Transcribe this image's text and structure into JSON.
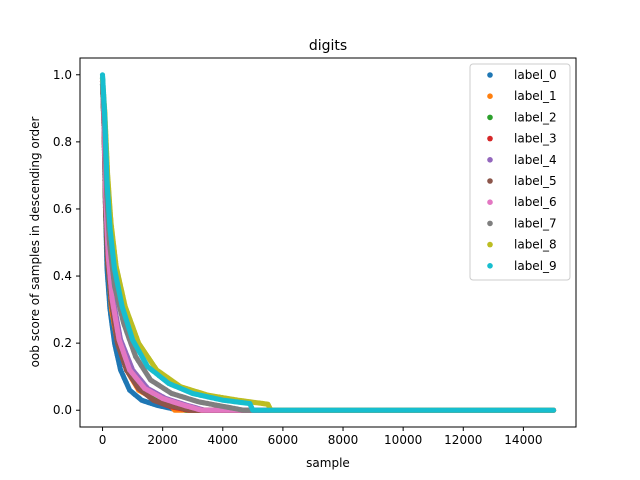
{
  "chart_data": {
    "type": "scatter",
    "title": "digits",
    "xlabel": "sample",
    "ylabel": "oob score of samples in descending order",
    "xlim": [
      -750,
      15750
    ],
    "ylim": [
      -0.05,
      1.05
    ],
    "xticks": [
      0,
      2000,
      4000,
      6000,
      8000,
      10000,
      12000,
      14000
    ],
    "xtick_labels": [
      "0",
      "2000",
      "4000",
      "6000",
      "8000",
      "10000",
      "12000",
      "14000"
    ],
    "yticks": [
      0.0,
      0.2,
      0.4,
      0.6,
      0.8,
      1.0
    ],
    "ytick_labels": [
      "0.0",
      "0.2",
      "0.4",
      "0.6",
      "0.8",
      "1.0"
    ],
    "grid": false,
    "legend_position": "top-right",
    "series": [
      {
        "name": "label_0",
        "color": "#1f77b4",
        "points": [
          [
            0,
            0.99
          ],
          [
            50,
            0.85
          ],
          [
            100,
            0.6
          ],
          [
            150,
            0.42
          ],
          [
            250,
            0.3
          ],
          [
            400,
            0.2
          ],
          [
            600,
            0.12
          ],
          [
            900,
            0.06
          ],
          [
            1300,
            0.03
          ],
          [
            1800,
            0.015
          ],
          [
            2300,
            0.005
          ],
          [
            2800,
            0.0
          ],
          [
            15000,
            0.0
          ]
        ]
      },
      {
        "name": "label_1",
        "color": "#ff7f0e",
        "points": [
          [
            0,
            0.98
          ],
          [
            60,
            0.86
          ],
          [
            120,
            0.6
          ],
          [
            200,
            0.42
          ],
          [
            300,
            0.3
          ],
          [
            500,
            0.2
          ],
          [
            800,
            0.12
          ],
          [
            1200,
            0.06
          ],
          [
            1700,
            0.035
          ],
          [
            2200,
            0.02
          ],
          [
            2400,
            0.0
          ],
          [
            15000,
            0.0
          ]
        ]
      },
      {
        "name": "label_2",
        "color": "#2ca02c",
        "points": [
          [
            0,
            0.97
          ],
          [
            50,
            0.84
          ],
          [
            100,
            0.6
          ],
          [
            170,
            0.44
          ],
          [
            300,
            0.32
          ],
          [
            500,
            0.21
          ],
          [
            800,
            0.12
          ],
          [
            1200,
            0.07
          ],
          [
            1700,
            0.035
          ],
          [
            2300,
            0.015
          ],
          [
            2800,
            0.0
          ],
          [
            15000,
            0.0
          ]
        ]
      },
      {
        "name": "label_3",
        "color": "#d62728",
        "points": [
          [
            0,
            0.98
          ],
          [
            50,
            0.85
          ],
          [
            110,
            0.6
          ],
          [
            180,
            0.45
          ],
          [
            300,
            0.32
          ],
          [
            500,
            0.2
          ],
          [
            800,
            0.12
          ],
          [
            1200,
            0.065
          ],
          [
            1700,
            0.03
          ],
          [
            2300,
            0.01
          ],
          [
            2900,
            0.0
          ],
          [
            15000,
            0.0
          ]
        ]
      },
      {
        "name": "label_4",
        "color": "#9467bd",
        "points": [
          [
            0,
            0.97
          ],
          [
            60,
            0.85
          ],
          [
            120,
            0.62
          ],
          [
            200,
            0.46
          ],
          [
            350,
            0.33
          ],
          [
            600,
            0.21
          ],
          [
            1000,
            0.12
          ],
          [
            1500,
            0.065
          ],
          [
            2100,
            0.035
          ],
          [
            2800,
            0.015
          ],
          [
            3400,
            0.0
          ],
          [
            15000,
            0.0
          ]
        ]
      },
      {
        "name": "label_5",
        "color": "#8c564b",
        "points": [
          [
            0,
            0.98
          ],
          [
            50,
            0.85
          ],
          [
            100,
            0.6
          ],
          [
            170,
            0.44
          ],
          [
            300,
            0.32
          ],
          [
            500,
            0.2
          ],
          [
            800,
            0.12
          ],
          [
            1200,
            0.065
          ],
          [
            1700,
            0.03
          ],
          [
            2300,
            0.012
          ],
          [
            3000,
            0.0
          ],
          [
            15000,
            0.0
          ]
        ]
      },
      {
        "name": "label_6",
        "color": "#e377c2",
        "points": [
          [
            0,
            0.98
          ],
          [
            50,
            0.86
          ],
          [
            110,
            0.62
          ],
          [
            190,
            0.46
          ],
          [
            320,
            0.33
          ],
          [
            550,
            0.21
          ],
          [
            900,
            0.12
          ],
          [
            1400,
            0.065
          ],
          [
            2000,
            0.035
          ],
          [
            2700,
            0.015
          ],
          [
            3300,
            0.0
          ],
          [
            15000,
            0.0
          ]
        ]
      },
      {
        "name": "label_7",
        "color": "#7f7f7f",
        "points": [
          [
            0,
            0.97
          ],
          [
            70,
            0.86
          ],
          [
            140,
            0.64
          ],
          [
            230,
            0.5
          ],
          [
            400,
            0.37
          ],
          [
            700,
            0.26
          ],
          [
            1100,
            0.16
          ],
          [
            1600,
            0.09
          ],
          [
            2300,
            0.05
          ],
          [
            3200,
            0.025
          ],
          [
            4100,
            0.01
          ],
          [
            4700,
            0.0
          ],
          [
            15000,
            0.0
          ]
        ]
      },
      {
        "name": "label_8",
        "color": "#bcbd22",
        "points": [
          [
            0,
            0.99
          ],
          [
            80,
            0.88
          ],
          [
            170,
            0.7
          ],
          [
            280,
            0.56
          ],
          [
            450,
            0.43
          ],
          [
            750,
            0.31
          ],
          [
            1200,
            0.2
          ],
          [
            1800,
            0.12
          ],
          [
            2600,
            0.07
          ],
          [
            3500,
            0.045
          ],
          [
            4500,
            0.03
          ],
          [
            5500,
            0.018
          ],
          [
            5600,
            0.0
          ],
          [
            15000,
            0.0
          ]
        ]
      },
      {
        "name": "label_9",
        "color": "#17becf",
        "points": [
          [
            0,
            1.0
          ],
          [
            70,
            0.88
          ],
          [
            150,
            0.68
          ],
          [
            250,
            0.54
          ],
          [
            400,
            0.42
          ],
          [
            650,
            0.31
          ],
          [
            1000,
            0.21
          ],
          [
            1500,
            0.13
          ],
          [
            2200,
            0.08
          ],
          [
            3000,
            0.05
          ],
          [
            4000,
            0.03
          ],
          [
            4900,
            0.02
          ],
          [
            5000,
            0.0
          ],
          [
            15000,
            0.0
          ]
        ]
      }
    ]
  }
}
